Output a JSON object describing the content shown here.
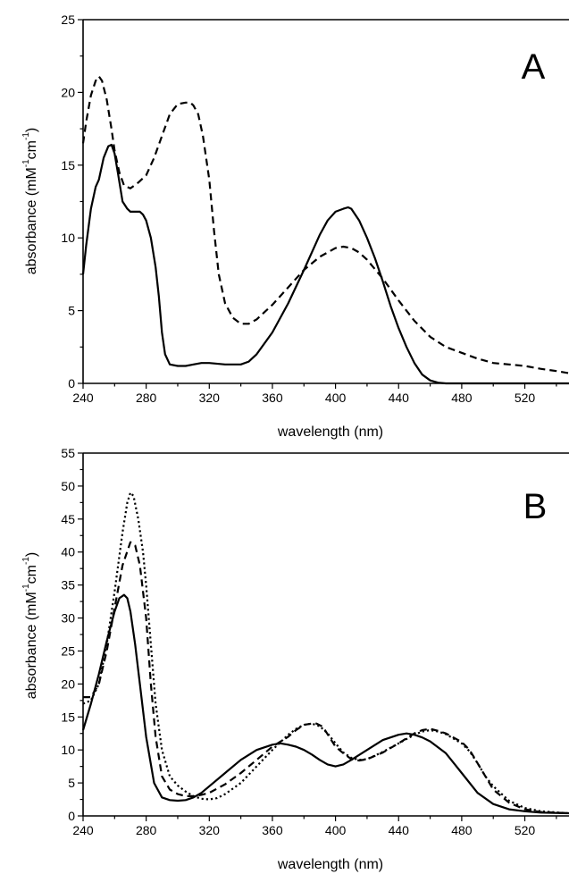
{
  "chart_data": [
    {
      "type": "line",
      "panel_label": "A",
      "xlabel": "wavelength (nm)",
      "ylabel": "absorbance (mM",
      "ylabel_sup1": "-1",
      "ylabel_mid": "cm",
      "ylabel_sup2": "-1",
      "ylabel_end": ")",
      "xlim": [
        240,
        548
      ],
      "ylim": [
        0,
        25
      ],
      "x_ticks": [
        240,
        280,
        320,
        360,
        400,
        440,
        480,
        520
      ],
      "y_ticks": [
        0,
        5,
        10,
        15,
        20,
        25
      ],
      "series": [
        {
          "style": "solid",
          "x": [
            240,
            242,
            245,
            248,
            250,
            253,
            256,
            258,
            260,
            262,
            265,
            268,
            270,
            273,
            276,
            278,
            280,
            283,
            286,
            288,
            290,
            292,
            295,
            300,
            305,
            310,
            315,
            320,
            330,
            340,
            345,
            350,
            360,
            370,
            380,
            390,
            395,
            400,
            405,
            408,
            410,
            415,
            420,
            425,
            430,
            435,
            440,
            445,
            450,
            455,
            460,
            465,
            470,
            480,
            500,
            520,
            548
          ],
          "y": [
            7.5,
            9.5,
            12.0,
            13.5,
            14.0,
            15.5,
            16.3,
            16.4,
            15.8,
            14.5,
            12.5,
            12.0,
            11.8,
            11.8,
            11.8,
            11.6,
            11.2,
            10.0,
            8.0,
            6.0,
            3.5,
            2.0,
            1.3,
            1.2,
            1.2,
            1.3,
            1.4,
            1.4,
            1.3,
            1.3,
            1.5,
            2.0,
            3.5,
            5.5,
            7.8,
            10.2,
            11.2,
            11.8,
            12.0,
            12.1,
            12.0,
            11.2,
            10.0,
            8.6,
            7.0,
            5.3,
            3.8,
            2.5,
            1.4,
            0.6,
            0.2,
            0.05,
            0.0,
            0.0,
            0.0,
            0.0,
            0.0
          ]
        },
        {
          "style": "dashed",
          "x": [
            240,
            242,
            245,
            248,
            250,
            252,
            255,
            258,
            260,
            263,
            266,
            270,
            275,
            280,
            285,
            290,
            295,
            300,
            305,
            308,
            310,
            313,
            316,
            320,
            323,
            326,
            330,
            335,
            340,
            345,
            350,
            360,
            370,
            380,
            390,
            400,
            405,
            410,
            415,
            420,
            430,
            440,
            450,
            460,
            470,
            480,
            490,
            500,
            510,
            520,
            530,
            540,
            548
          ],
          "y": [
            16.5,
            18.0,
            19.8,
            20.8,
            21.1,
            20.8,
            19.5,
            17.5,
            16.0,
            14.5,
            13.6,
            13.4,
            13.8,
            14.3,
            15.5,
            17.0,
            18.5,
            19.2,
            19.3,
            19.3,
            19.1,
            18.5,
            17.0,
            14.0,
            10.5,
            7.5,
            5.5,
            4.5,
            4.1,
            4.1,
            4.4,
            5.4,
            6.6,
            7.8,
            8.7,
            9.3,
            9.4,
            9.3,
            9.0,
            8.5,
            7.2,
            5.7,
            4.3,
            3.2,
            2.5,
            2.1,
            1.7,
            1.4,
            1.3,
            1.2,
            1.0,
            0.85,
            0.7
          ]
        }
      ]
    },
    {
      "type": "line",
      "panel_label": "B",
      "xlabel": "wavelength (nm)",
      "ylabel": "absorbance (mM",
      "ylabel_sup1": "-1",
      "ylabel_mid": "cm",
      "ylabel_sup2": "-1",
      "ylabel_end": ")",
      "xlim": [
        240,
        548
      ],
      "ylim": [
        0,
        55
      ],
      "x_ticks": [
        240,
        280,
        320,
        360,
        400,
        440,
        480,
        520
      ],
      "y_ticks": [
        0,
        5,
        10,
        15,
        20,
        25,
        30,
        35,
        40,
        45,
        50,
        55
      ],
      "series": [
        {
          "style": "solid",
          "x": [
            240,
            245,
            250,
            255,
            260,
            263,
            266,
            268,
            270,
            273,
            276,
            280,
            285,
            290,
            295,
            300,
            305,
            310,
            315,
            320,
            330,
            340,
            350,
            360,
            365,
            370,
            375,
            380,
            385,
            390,
            395,
            400,
            405,
            410,
            420,
            430,
            440,
            445,
            450,
            455,
            460,
            470,
            480,
            490,
            500,
            510,
            520,
            530,
            548
          ],
          "y": [
            13.0,
            17.0,
            21.5,
            26.5,
            31.0,
            33.0,
            33.5,
            33.0,
            31.0,
            26.0,
            20.0,
            12.0,
            5.0,
            2.8,
            2.4,
            2.3,
            2.4,
            2.8,
            3.5,
            4.5,
            6.5,
            8.5,
            10.0,
            10.8,
            11.0,
            10.8,
            10.5,
            10.0,
            9.3,
            8.5,
            7.8,
            7.5,
            7.8,
            8.5,
            10.0,
            11.5,
            12.3,
            12.5,
            12.3,
            11.9,
            11.3,
            9.5,
            6.5,
            3.5,
            1.8,
            1.0,
            0.7,
            0.5,
            0.4
          ]
        },
        {
          "style": "dashed",
          "x": [
            240,
            245,
            250,
            255,
            260,
            265,
            270,
            273,
            276,
            280,
            283,
            286,
            290,
            295,
            300,
            305,
            310,
            315,
            320,
            330,
            340,
            350,
            360,
            370,
            375,
            380,
            385,
            388,
            392,
            396,
            400,
            405,
            410,
            415,
            420,
            430,
            440,
            450,
            455,
            460,
            465,
            470,
            480,
            485,
            490,
            495,
            500,
            510,
            520,
            530,
            548
          ],
          "y": [
            18.0,
            18.0,
            20.0,
            25.0,
            31.5,
            38.0,
            41.5,
            41.0,
            38.0,
            30.0,
            20.0,
            12.0,
            6.0,
            4.0,
            3.3,
            3.0,
            3.0,
            3.2,
            3.5,
            4.8,
            6.5,
            8.5,
            10.5,
            12.0,
            13.0,
            13.8,
            14.0,
            14.0,
            13.5,
            12.0,
            10.5,
            9.5,
            8.6,
            8.4,
            8.6,
            9.6,
            11.0,
            12.5,
            13.0,
            13.2,
            12.9,
            12.5,
            11.2,
            10.0,
            8.0,
            6.0,
            4.0,
            2.0,
            1.0,
            0.6,
            0.4
          ]
        },
        {
          "style": "dotted",
          "x": [
            240,
            245,
            250,
            255,
            260,
            265,
            268,
            270,
            272,
            275,
            278,
            280,
            283,
            286,
            290,
            295,
            300,
            305,
            310,
            315,
            320,
            325,
            330,
            340,
            350,
            360,
            370,
            375,
            380,
            385,
            390,
            395,
            400,
            405,
            410,
            415,
            420,
            430,
            440,
            450,
            455,
            460,
            465,
            470,
            480,
            485,
            490,
            495,
            500,
            510,
            520,
            530,
            548
          ],
          "y": [
            17.0,
            17.5,
            20.0,
            26.0,
            34.0,
            43.0,
            47.5,
            49.0,
            48.5,
            45.0,
            40.0,
            35.0,
            26.0,
            17.0,
            10.0,
            6.0,
            4.6,
            3.7,
            3.0,
            2.6,
            2.5,
            2.7,
            3.3,
            5.0,
            7.5,
            10.0,
            12.3,
            13.2,
            13.8,
            14.0,
            13.6,
            12.5,
            11.0,
            9.6,
            8.8,
            8.5,
            8.6,
            9.7,
            11.0,
            12.3,
            12.8,
            13.0,
            12.8,
            12.4,
            11.0,
            9.8,
            8.0,
            6.0,
            4.5,
            2.3,
            1.2,
            0.7,
            0.4
          ]
        }
      ]
    }
  ]
}
